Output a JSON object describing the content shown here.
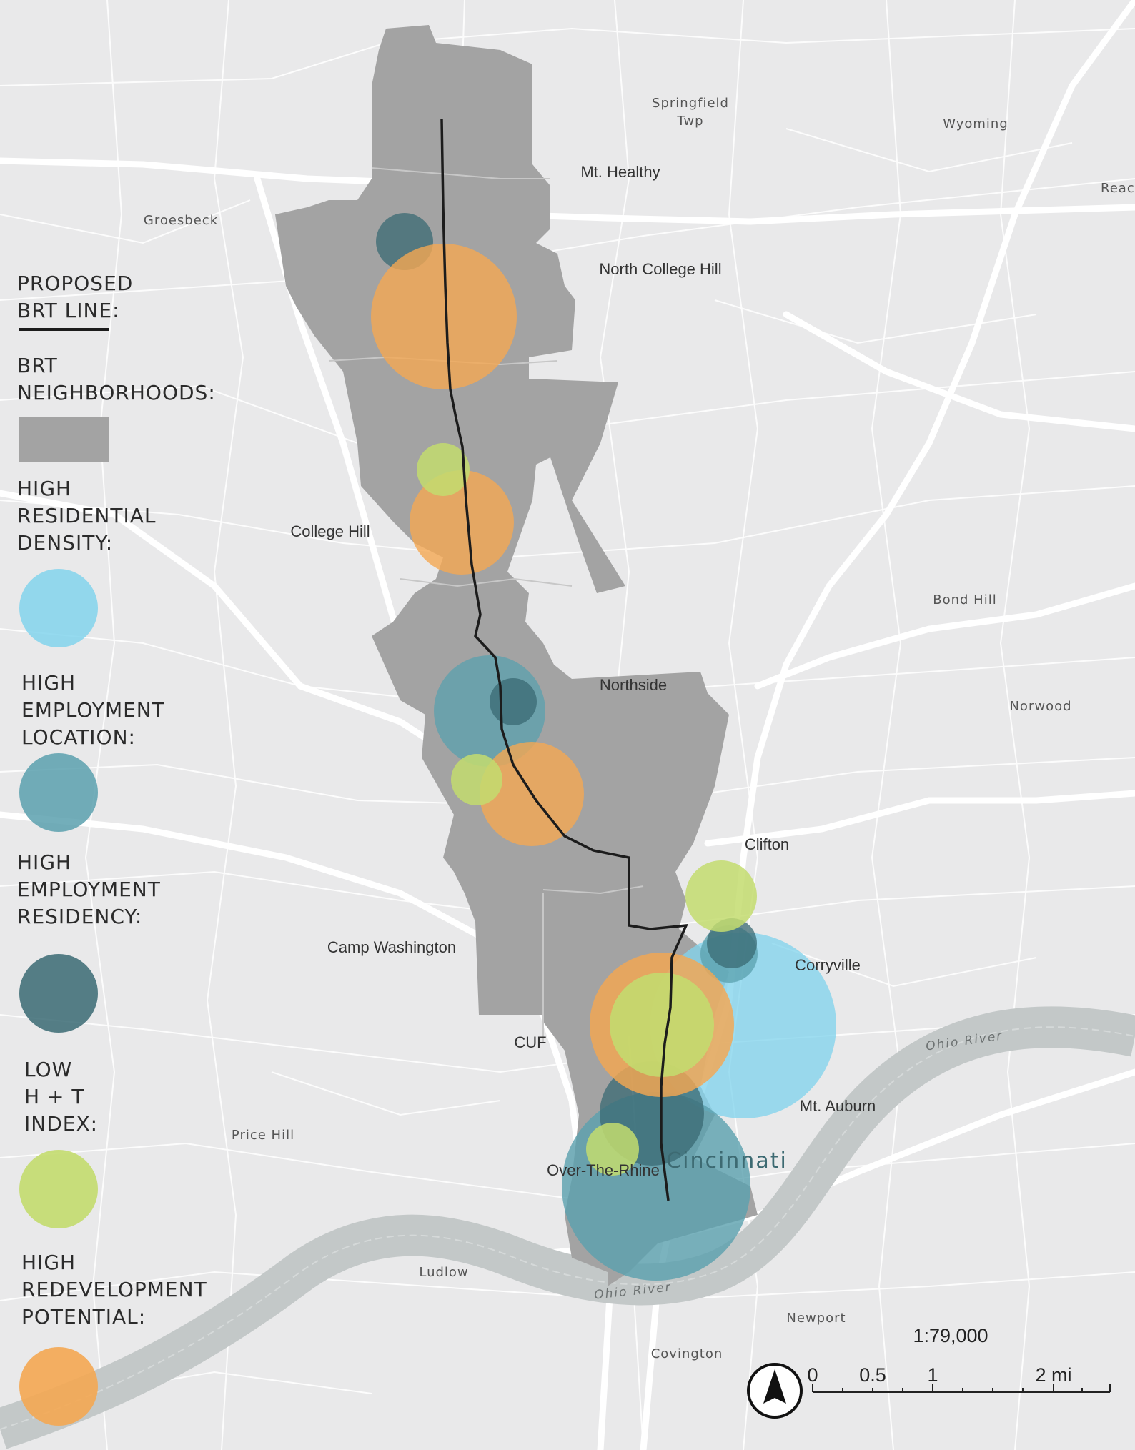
{
  "map": {
    "colors": {
      "background": "#e9e9ea",
      "roads": "#ffffff",
      "river": "#c3c8c8",
      "neighborhoods": "#a3a3a3",
      "brt_line": "#1c1c1c",
      "high_residential_density": "#83d3ec",
      "high_employment_location": "#5aa0ae",
      "high_employment_residency": "#396a73",
      "low_ht_index": "#c3dc6e",
      "high_redevelopment_potential": "#f4a752"
    },
    "place_labels": {
      "springfield": "Springfield",
      "springfield_twp": "Twp",
      "wyoming": "Wyoming",
      "reading": "Reac",
      "mt_healthy": "Mt. Healthy",
      "groesbeck": "Groesbeck",
      "north_college_hill": "North College Hill",
      "college_hill": "College Hill",
      "bond_hill": "Bond Hill",
      "northside": "Northside",
      "norwood": "Norwood",
      "clifton": "Clifton",
      "camp_washington": "Camp Washington",
      "corryville": "Corryville",
      "cuf": "CUF",
      "mt_auburn": "Mt. Auburn",
      "price_hill": "Price Hill",
      "cincinnati": "Cincinnati",
      "over_the_rhine": "Over-The-Rhine",
      "ludlow": "Ludlow",
      "newport": "Newport",
      "covington": "Covington",
      "ohio_river_1": "Ohio River",
      "ohio_river_2": "Ohio River"
    },
    "icons": [
      "north-arrow-icon"
    ]
  },
  "legend": {
    "brt_line": [
      "PROPOSED",
      "BRT LINE:"
    ],
    "brt_neighborhoods": [
      "BRT",
      "NEIGHBORHOODS:"
    ],
    "high_residential_density": [
      "HIGH",
      "RESIDENTIAL",
      "DENSITY:"
    ],
    "high_employment_location": [
      "HIGH",
      "EMPLOYMENT",
      "LOCATION:"
    ],
    "high_employment_residency": [
      "HIGH",
      "EMPLOYMENT",
      "RESIDENCY:"
    ],
    "low_ht_index": [
      "LOW",
      "H + T",
      "INDEX:"
    ],
    "high_redevelopment_potential": [
      "HIGH",
      "REDEVELOPMENT",
      "POTENTIAL:"
    ]
  },
  "scale": {
    "ratio": "1:79,000",
    "ticks": [
      "0",
      "0.5",
      "1",
      "2 mi"
    ]
  }
}
